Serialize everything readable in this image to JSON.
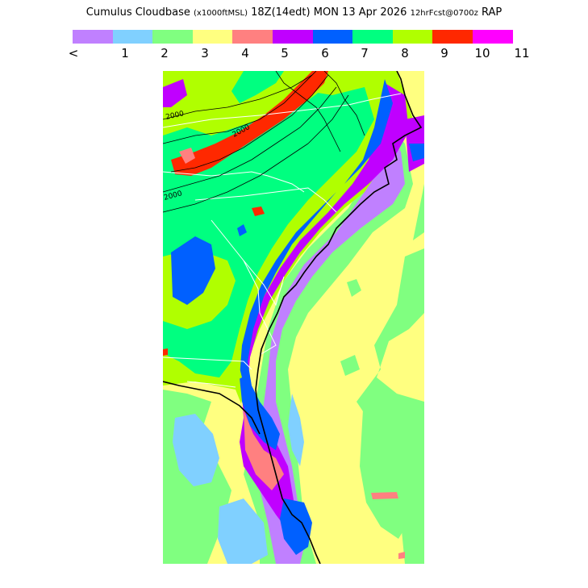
{
  "title": {
    "main": "Cumulus Cloudbase",
    "units": "(x1000ftMSL)",
    "valid": "18Z(14edt)",
    "date": "MON 13 Apr 2026",
    "forecast": "12hrFcst@0700z",
    "model": "RAP"
  },
  "legend": {
    "colors": [
      "#c080ff",
      "#80d0ff",
      "#80ff80",
      "#ffff80",
      "#ff8080",
      "#c000ff",
      "#0060ff",
      "#00ff80",
      "#b0ff00",
      "#ff2800",
      "#ff00ff"
    ],
    "labels": [
      "<",
      "1",
      "2",
      "3",
      "4",
      "5",
      "6",
      "7",
      "8",
      "9",
      "10",
      "11"
    ]
  },
  "map": {
    "contour_labels": [
      "2000",
      "2000",
      "2000"
    ]
  }
}
